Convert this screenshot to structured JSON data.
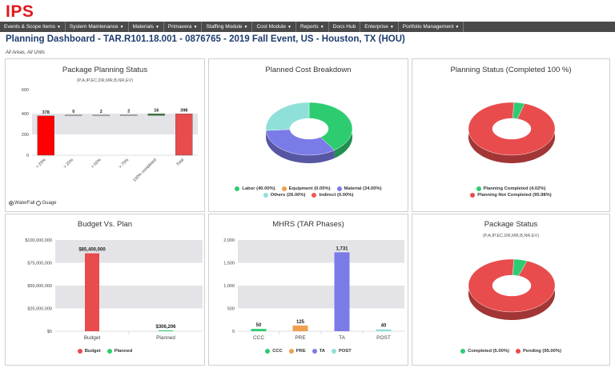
{
  "app": {
    "logo": "IPS"
  },
  "nav": [
    {
      "label": "Events & Scope Items",
      "caret": true
    },
    {
      "label": "System Maintenance",
      "caret": true
    },
    {
      "label": "Materials",
      "caret": true
    },
    {
      "label": "Primavera",
      "caret": true
    },
    {
      "label": "Staffing Module",
      "caret": true
    },
    {
      "label": "Cost Module",
      "caret": true
    },
    {
      "label": "Reports",
      "caret": true
    },
    {
      "label": "Docs Hub",
      "caret": false
    },
    {
      "label": "Enterprise",
      "caret": true
    },
    {
      "label": "Portfolio Management",
      "caret": true
    }
  ],
  "page": {
    "title": "Planning Dashboard - TAR.R101.18.001 - 0876765 - 2019 Fall Event, US - Houston, TX (HOU)",
    "filter": "All Areas, All Units"
  },
  "panels": {
    "package_planning": {
      "title": "Package Planning Status",
      "subtitle": "(P,A,IP,EC,DR,MR,B,NR,EV)",
      "radio_waterfall": "WaterFall",
      "radio_gauge": "Guage"
    },
    "cost_breakdown": {
      "title": "Planned Cost Breakdown"
    },
    "planning_status": {
      "title": "Planning Status (Completed 100 %)"
    },
    "budget_plan": {
      "title": "Budget Vs. Plan"
    },
    "mhrs": {
      "title": "MHRS (TAR Phases)"
    },
    "package_status": {
      "title": "Package Status",
      "subtitle": "(P,A,IP,EC,DR,MR,B,NR,EV)"
    }
  },
  "chart_data": [
    {
      "id": "package_planning",
      "type": "bar",
      "subtype": "waterfall",
      "categories": [
        "< 25%",
        "> 25%",
        "> 50%",
        "> 75%",
        "100% completed",
        "Total"
      ],
      "values": [
        378,
        0,
        2,
        2,
        16,
        398
      ],
      "data_labels": [
        "378",
        "0",
        "2",
        "2",
        "16",
        "398"
      ],
      "colors": [
        "#ff0000",
        "#cccccc",
        "#cccccc",
        "#cccccc",
        "#2e7d32",
        "#e84c4c"
      ],
      "ylim": [
        0,
        400
      ],
      "yticks": [
        "0",
        "200",
        "400"
      ],
      "ytick_values": [
        0,
        200,
        400
      ],
      "extra_tick": "600",
      "grid": true
    },
    {
      "id": "cost_breakdown",
      "type": "pie",
      "subtype": "3d-donut",
      "slices": [
        {
          "label": "Labor (40.00%)",
          "value": 40,
          "color": "#2ecc71"
        },
        {
          "label": "Equipment (0.00%)",
          "value": 0,
          "color": "#f0a050"
        },
        {
          "label": "Material (34.00%)",
          "value": 34,
          "color": "#7b7be8"
        },
        {
          "label": "Others (26.00%)",
          "value": 26,
          "color": "#8fe0d8"
        },
        {
          "label": "Indirect (0.00%)",
          "value": 0,
          "color": "#ee5555"
        }
      ]
    },
    {
      "id": "planning_status",
      "type": "pie",
      "subtype": "3d-donut",
      "slices": [
        {
          "label": "Planning Completed (4.02%)",
          "value": 4.02,
          "color": "#2ecc71"
        },
        {
          "label": "Planning Not Completed (95.98%)",
          "value": 95.98,
          "color": "#e84c4c"
        }
      ]
    },
    {
      "id": "budget_plan",
      "type": "bar",
      "categories": [
        "Budget",
        "Planned"
      ],
      "values": [
        85400000,
        306206
      ],
      "data_labels": [
        "$85,400,000",
        "$306,206"
      ],
      "colors": [
        "#e84c4c",
        "#2ecc71"
      ],
      "ylim": [
        0,
        100000000
      ],
      "yticks": [
        "$0",
        "$25,000,000",
        "$50,000,000",
        "$75,000,000",
        "$100,000,000"
      ],
      "ytick_values": [
        0,
        25000000,
        50000000,
        75000000,
        100000000
      ],
      "legend": [
        {
          "label": "Budget",
          "color": "#e84c4c"
        },
        {
          "label": "Planned",
          "color": "#2ecc71"
        }
      ],
      "grid": true
    },
    {
      "id": "mhrs",
      "type": "bar",
      "categories": [
        "CCC",
        "PRE",
        "TA",
        "POST"
      ],
      "values": [
        50,
        125,
        1731,
        40
      ],
      "data_labels": [
        "50",
        "125",
        "1,731",
        "40"
      ],
      "colors": [
        "#2ecc71",
        "#f0a050",
        "#7b7be8",
        "#8fe0d8"
      ],
      "ylim": [
        0,
        2000
      ],
      "yticks": [
        "0",
        "500",
        "1,000",
        "1,500",
        "2,000"
      ],
      "ytick_values": [
        0,
        500,
        1000,
        1500,
        2000
      ],
      "legend": [
        {
          "label": "CCC",
          "color": "#2ecc71"
        },
        {
          "label": "PRE",
          "color": "#f0a050"
        },
        {
          "label": "TA",
          "color": "#7b7be8"
        },
        {
          "label": "POST",
          "color": "#8fe0d8"
        }
      ],
      "grid": true
    },
    {
      "id": "package_status",
      "type": "pie",
      "subtype": "3d-donut",
      "slices": [
        {
          "label": "Completed (5.00%)",
          "value": 5,
          "color": "#2ecc71"
        },
        {
          "label": "Pending (95.00%)",
          "value": 95,
          "color": "#e84c4c"
        }
      ]
    }
  ]
}
